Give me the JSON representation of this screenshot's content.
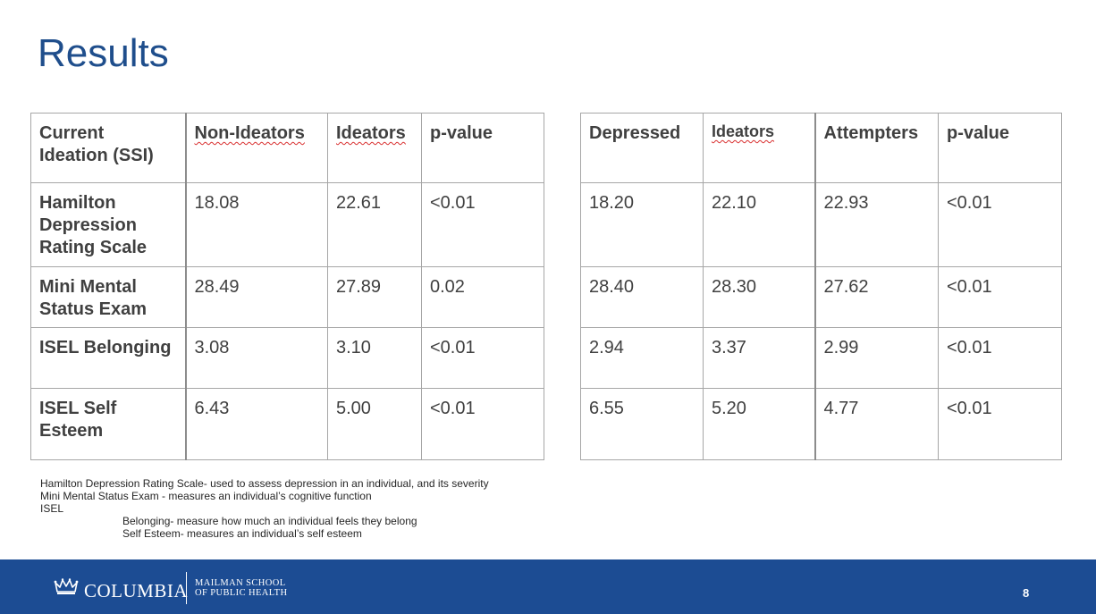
{
  "slide": {
    "title": "Results",
    "page_number": "8"
  },
  "table_left": {
    "headers": [
      "Current Ideation (SSI)",
      "Non-Ideators",
      "Ideators",
      "p-value"
    ],
    "rows": [
      [
        "Hamilton Depression Rating Scale",
        "18.08",
        "22.61",
        "<0.01"
      ],
      [
        "Mini Mental Status Exam",
        "28.49",
        "27.89",
        "0.02"
      ],
      [
        "ISEL Belonging",
        "3.08",
        "3.10",
        "<0.01"
      ],
      [
        "ISEL Self Esteem",
        "6.43",
        "5.00",
        "<0.01"
      ]
    ]
  },
  "table_right": {
    "headers": [
      "Depressed",
      "Ideators",
      "Attempters",
      "p-value"
    ],
    "rows": [
      [
        "18.20",
        "22.10",
        "22.93",
        "<0.01"
      ],
      [
        "28.40",
        "28.30",
        "27.62",
        "<0.01"
      ],
      [
        "2.94",
        "3.37",
        "2.99",
        "<0.01"
      ],
      [
        "6.55",
        "5.20",
        "4.77",
        "<0.01"
      ]
    ]
  },
  "footnotes": {
    "line1": "Hamilton Depression Rating Scale- used to assess depression in an individual, and its severity",
    "line2": "Mini Mental Status Exam - measures an  individual’s cognitive function",
    "line3": "ISEL",
    "line4": "Belonging- measure how much an individual  feels they belong",
    "line5": "Self Esteem- measures an individual’s  self esteem"
  },
  "footer": {
    "brand_name": "COLUMBIA",
    "school_line1": "MAILMAN SCHOOL",
    "school_line2": "OF PUBLIC HEALTH",
    "bar_color": "#1c4c93",
    "icon": "crown-icon"
  },
  "colors": {
    "title": "#1f4e8c",
    "pvalue": "#1f74b8",
    "text": "#404040"
  }
}
